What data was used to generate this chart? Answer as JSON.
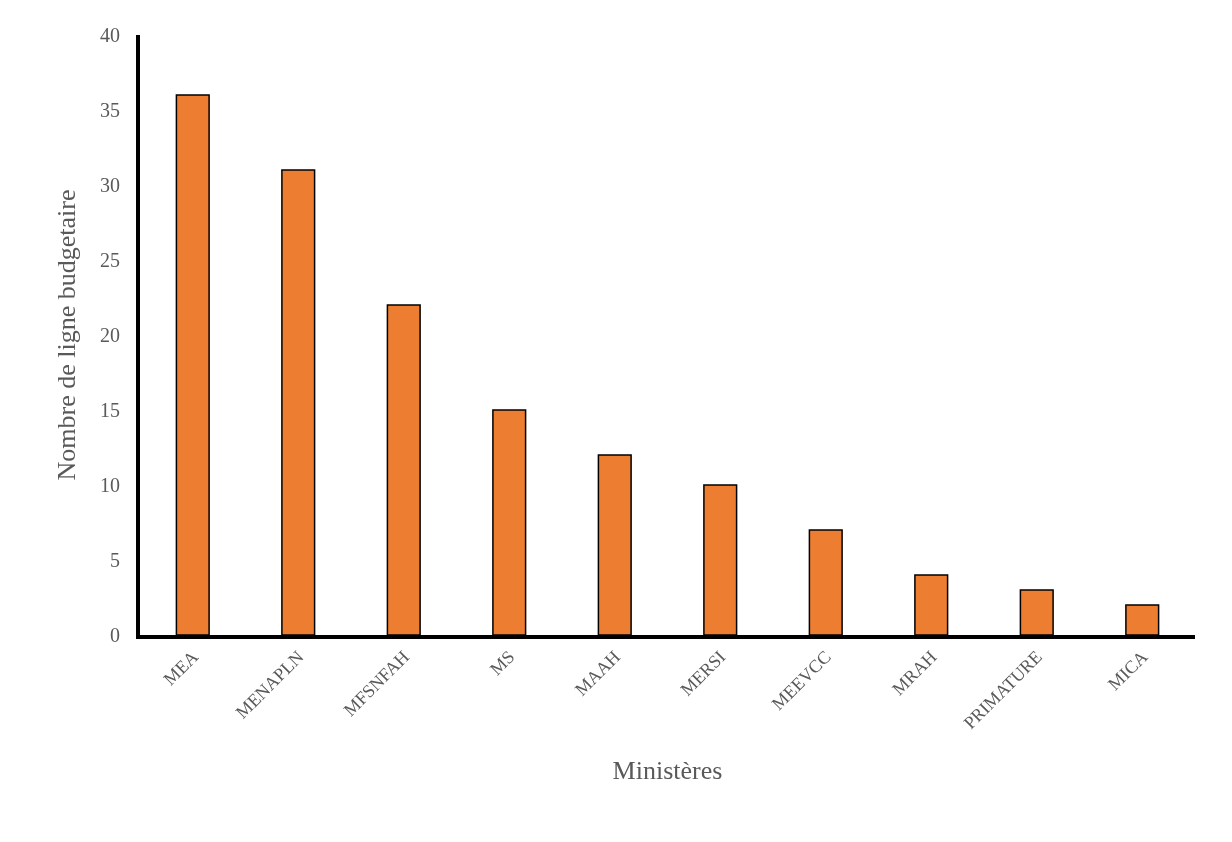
{
  "chart_data": {
    "type": "bar",
    "xlabel": "Ministères",
    "ylabel": "Nombre de ligne budgetaire",
    "categories": [
      "MEA",
      "MENAPLN",
      "MFSNFAH",
      "MS",
      "MAAH",
      "MERSI",
      "MEEVCC",
      "MRAH",
      "PRIMATURE",
      "MICA"
    ],
    "values": [
      36,
      31,
      22,
      15,
      12,
      10,
      7,
      4,
      3,
      2
    ],
    "color": "#ed7d31",
    "ylim": [
      0,
      40
    ],
    "yticks": [
      0,
      5,
      10,
      15,
      20,
      25,
      30,
      35,
      40
    ]
  }
}
